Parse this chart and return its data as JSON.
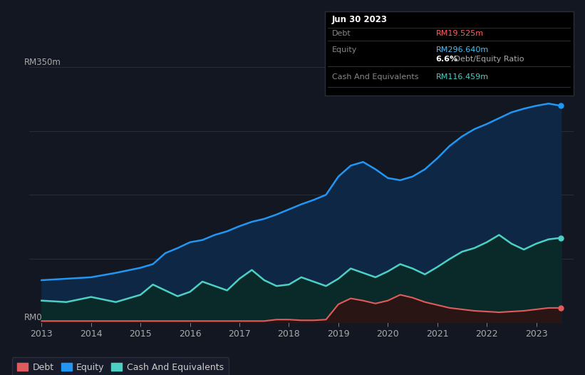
{
  "background_color": "#131722",
  "plot_bg_color": "#131722",
  "title_box": {
    "date": "Jun 30 2023",
    "debt_label": "Debt",
    "debt_value": "RM19.525m",
    "debt_color": "#ff6060",
    "equity_label": "Equity",
    "equity_value": "RM296.640m",
    "equity_color": "#4fc3f7",
    "ratio_bold": "6.6%",
    "ratio_text": " Debt/Equity Ratio",
    "cash_label": "Cash And Equivalents",
    "cash_value": "RM116.459m",
    "cash_color": "#4dd0c4",
    "box_bg": "#000000",
    "box_border": "#2a2e39",
    "label_color": "#888888"
  },
  "y_label_top": "RM350m",
  "y_label_bottom": "RM0",
  "x_ticks": [
    2013,
    2014,
    2015,
    2016,
    2017,
    2018,
    2019,
    2020,
    2021,
    2022,
    2023
  ],
  "grid_color": "#2a2e39",
  "equity_color": "#2196f3",
  "equity_fill": "#0d2744",
  "debt_color": "#e05c5c",
  "debt_fill": "#2a1515",
  "cash_color": "#4dd0c4",
  "cash_fill": "#0a2a2a",
  "legend_items": [
    {
      "label": "Debt",
      "color": "#e05c5c"
    },
    {
      "label": "Equity",
      "color": "#2196f3"
    },
    {
      "label": "Cash And Equivalents",
      "color": "#4dd0c4"
    }
  ],
  "years": [
    2013.0,
    2013.5,
    2014.0,
    2014.5,
    2015.0,
    2015.25,
    2015.5,
    2015.75,
    2016.0,
    2016.25,
    2016.5,
    2016.75,
    2017.0,
    2017.25,
    2017.5,
    2017.75,
    2018.0,
    2018.25,
    2018.5,
    2018.75,
    2019.0,
    2019.25,
    2019.5,
    2019.75,
    2020.0,
    2020.25,
    2020.5,
    2020.75,
    2021.0,
    2021.25,
    2021.5,
    2021.75,
    2022.0,
    2022.25,
    2022.5,
    2022.75,
    2023.0,
    2023.25,
    2023.5
  ],
  "equity": [
    58,
    60,
    62,
    68,
    75,
    80,
    95,
    102,
    110,
    113,
    120,
    125,
    132,
    138,
    142,
    148,
    155,
    162,
    168,
    175,
    200,
    215,
    220,
    210,
    198,
    195,
    200,
    210,
    225,
    242,
    255,
    265,
    272,
    280,
    288,
    293,
    297,
    300,
    297
  ],
  "cash": [
    30,
    28,
    35,
    28,
    38,
    52,
    44,
    36,
    42,
    56,
    50,
    44,
    60,
    72,
    58,
    50,
    52,
    62,
    56,
    50,
    60,
    74,
    68,
    62,
    70,
    80,
    74,
    66,
    76,
    87,
    97,
    102,
    110,
    120,
    108,
    100,
    108,
    114,
    116
  ],
  "debt": [
    2,
    2,
    2,
    2,
    2,
    2,
    2,
    2,
    2,
    2,
    2,
    2,
    2,
    2,
    2,
    4,
    4,
    3,
    3,
    4,
    25,
    33,
    30,
    26,
    30,
    38,
    34,
    28,
    24,
    20,
    18,
    16,
    15,
    14,
    15,
    16,
    18,
    20,
    20
  ],
  "ylim": [
    0,
    370
  ],
  "xlim": [
    2012.75,
    2023.75
  ]
}
